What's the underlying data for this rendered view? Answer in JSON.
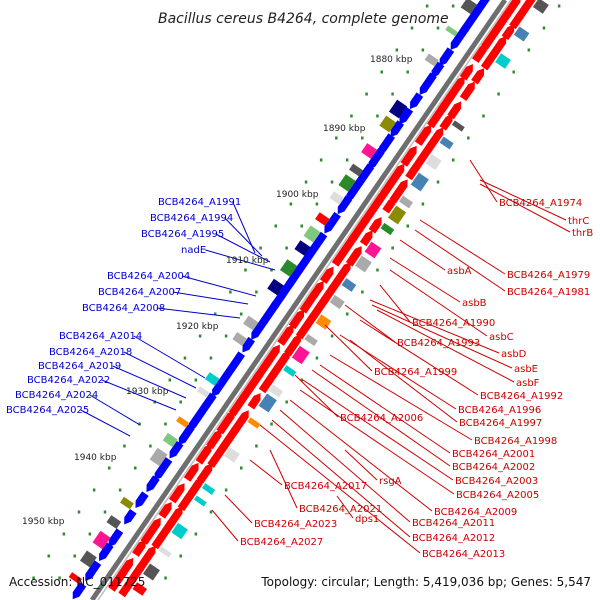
{
  "title": "Bacillus cereus B4264, complete genome",
  "footer": {
    "accession": "Accession: NC_011725",
    "topology": "Topology: circular; Length: 5,419,036 bp; Genes: 5,547"
  },
  "colors": {
    "backbone": "#7a7a7a",
    "plus_strand_gene": "#0000ff",
    "minus_strand_gene": "#ff0000",
    "label_blue": "#0000cc",
    "label_red": "#cc0000",
    "tick": "#2e8b2e"
  },
  "position_markers": [
    "1880 kbp",
    "1890 kbp",
    "1900 kbp",
    "1910 kbp",
    "1920 kbp",
    "1930 kbp",
    "1940 kbp",
    "1950 kbp"
  ],
  "plus_strand_labels": [
    "BCB4264_A1991",
    "BCB4264_A1994",
    "BCB4264_A1995",
    "nadE",
    "BCB4264_A2004",
    "BCB4264_A2007",
    "BCB4264_A2008",
    "BCB4264_A2014",
    "BCB4264_A2018",
    "BCB4264_A2019",
    "BCB4264_A2022",
    "BCB4264_A2024",
    "BCB4264_A2025"
  ],
  "minus_strand_labels": [
    "BCB4264_A1974",
    "thrC",
    "thrB",
    "asbA",
    "BCB4264_A1979",
    "asbB",
    "BCB4264_A1981",
    "BCB4264_A1990",
    "asbC",
    "BCB4264_A1993",
    "asbD",
    "asbE",
    "BCB4264_A1999",
    "asbF",
    "BCB4264_A1992",
    "BCB4264_A1996",
    "BCB4264_A2006",
    "BCB4264_A1997",
    "BCB4264_A1998",
    "BCB4264_A2001",
    "BCB4264_A2002",
    "BCB4264_A2003",
    "rsgA",
    "BCB4264_A2017",
    "BCB4264_A2005",
    "BCB4264_A2021",
    "BCB4264_A2009",
    "dps1",
    "BCB4264_A2023",
    "BCB4264_A2011",
    "BCB4264_A2012",
    "BCB4264_A2027",
    "BCB4264_A2013"
  ]
}
